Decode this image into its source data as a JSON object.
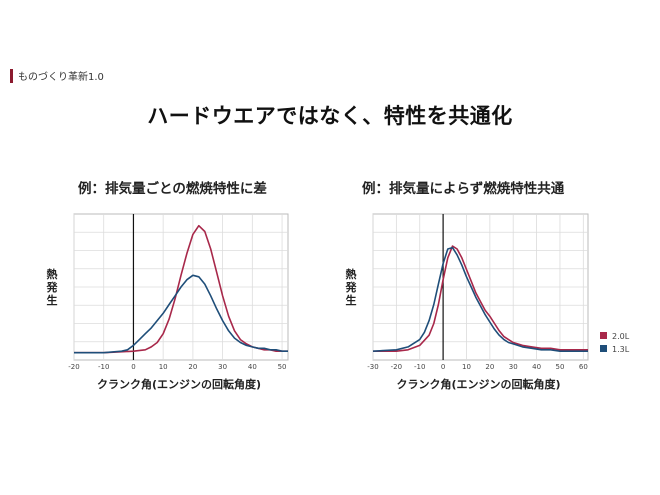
{
  "header": {
    "section_label": "ものづくり革新1.0",
    "accent_color": "#8b1a2e"
  },
  "main_title": "ハードウエアではなく、特性を共通化",
  "legend": [
    {
      "label": "2.0L",
      "color": "#a8284a"
    },
    {
      "label": "1.3L",
      "color": "#1f4e79"
    }
  ],
  "chart_data": [
    {
      "type": "line",
      "title": "例：排気量ごとの燃焼特性に差",
      "ylabel": "熱発生",
      "xlabel": "クランク角(エンジンの回転角度)",
      "xlim": [
        -20,
        52
      ],
      "ylim": [
        0,
        1
      ],
      "xticks": [
        -20,
        -10,
        0,
        10,
        20,
        30,
        40,
        50
      ],
      "grid": true,
      "series": [
        {
          "name": "2.0L",
          "color": "#a8284a",
          "x": [
            -20,
            -10,
            0,
            4,
            6,
            8,
            10,
            12,
            14,
            16,
            18,
            20,
            22,
            24,
            26,
            28,
            30,
            32,
            34,
            36,
            38,
            40,
            42,
            44,
            46,
            48,
            50,
            52
          ],
          "y": [
            0.05,
            0.05,
            0.06,
            0.07,
            0.09,
            0.12,
            0.18,
            0.28,
            0.42,
            0.58,
            0.73,
            0.86,
            0.92,
            0.88,
            0.76,
            0.6,
            0.44,
            0.3,
            0.2,
            0.14,
            0.11,
            0.09,
            0.08,
            0.07,
            0.07,
            0.06,
            0.06,
            0.06
          ]
        },
        {
          "name": "1.3L",
          "color": "#1f4e79",
          "x": [
            -20,
            -10,
            -4,
            -2,
            0,
            2,
            4,
            6,
            8,
            10,
            12,
            14,
            16,
            18,
            20,
            22,
            24,
            26,
            28,
            30,
            32,
            34,
            36,
            38,
            40,
            42,
            44,
            46,
            48,
            50,
            52
          ],
          "y": [
            0.05,
            0.05,
            0.06,
            0.07,
            0.1,
            0.14,
            0.18,
            0.22,
            0.27,
            0.32,
            0.38,
            0.44,
            0.5,
            0.55,
            0.58,
            0.57,
            0.52,
            0.44,
            0.35,
            0.27,
            0.2,
            0.15,
            0.12,
            0.1,
            0.09,
            0.08,
            0.08,
            0.07,
            0.07,
            0.06,
            0.06
          ]
        }
      ]
    },
    {
      "type": "line",
      "title": "例：排気量によらず燃焼特性共通",
      "ylabel": "熱発生",
      "xlabel": "クランク角(エンジンの回転角度)",
      "xlim": [
        -30,
        62
      ],
      "ylim": [
        0,
        1
      ],
      "xticks": [
        -30,
        -20,
        -10,
        0,
        10,
        20,
        30,
        40,
        50,
        60
      ],
      "grid": true,
      "series": [
        {
          "name": "2.0L",
          "color": "#a8284a",
          "x": [
            -30,
            -20,
            -15,
            -10,
            -6,
            -4,
            -2,
            0,
            2,
            4,
            6,
            8,
            10,
            12,
            14,
            16,
            18,
            20,
            22,
            24,
            26,
            28,
            30,
            34,
            38,
            42,
            46,
            50,
            54,
            58,
            62
          ],
          "y": [
            0.06,
            0.06,
            0.07,
            0.1,
            0.17,
            0.25,
            0.38,
            0.55,
            0.7,
            0.78,
            0.76,
            0.7,
            0.62,
            0.54,
            0.46,
            0.4,
            0.34,
            0.3,
            0.25,
            0.2,
            0.16,
            0.14,
            0.12,
            0.1,
            0.09,
            0.08,
            0.08,
            0.07,
            0.07,
            0.07,
            0.07
          ]
        },
        {
          "name": "1.3L",
          "color": "#1f4e79",
          "x": [
            -30,
            -20,
            -15,
            -10,
            -8,
            -6,
            -4,
            -2,
            0,
            2,
            4,
            6,
            8,
            10,
            12,
            14,
            16,
            18,
            20,
            22,
            24,
            26,
            28,
            30,
            34,
            38,
            42,
            46,
            50,
            54,
            58,
            62
          ],
          "y": [
            0.06,
            0.07,
            0.09,
            0.14,
            0.19,
            0.27,
            0.38,
            0.52,
            0.66,
            0.76,
            0.77,
            0.72,
            0.65,
            0.57,
            0.5,
            0.43,
            0.37,
            0.31,
            0.26,
            0.21,
            0.17,
            0.14,
            0.12,
            0.11,
            0.09,
            0.08,
            0.07,
            0.07,
            0.06,
            0.06,
            0.06,
            0.06
          ]
        }
      ]
    }
  ]
}
